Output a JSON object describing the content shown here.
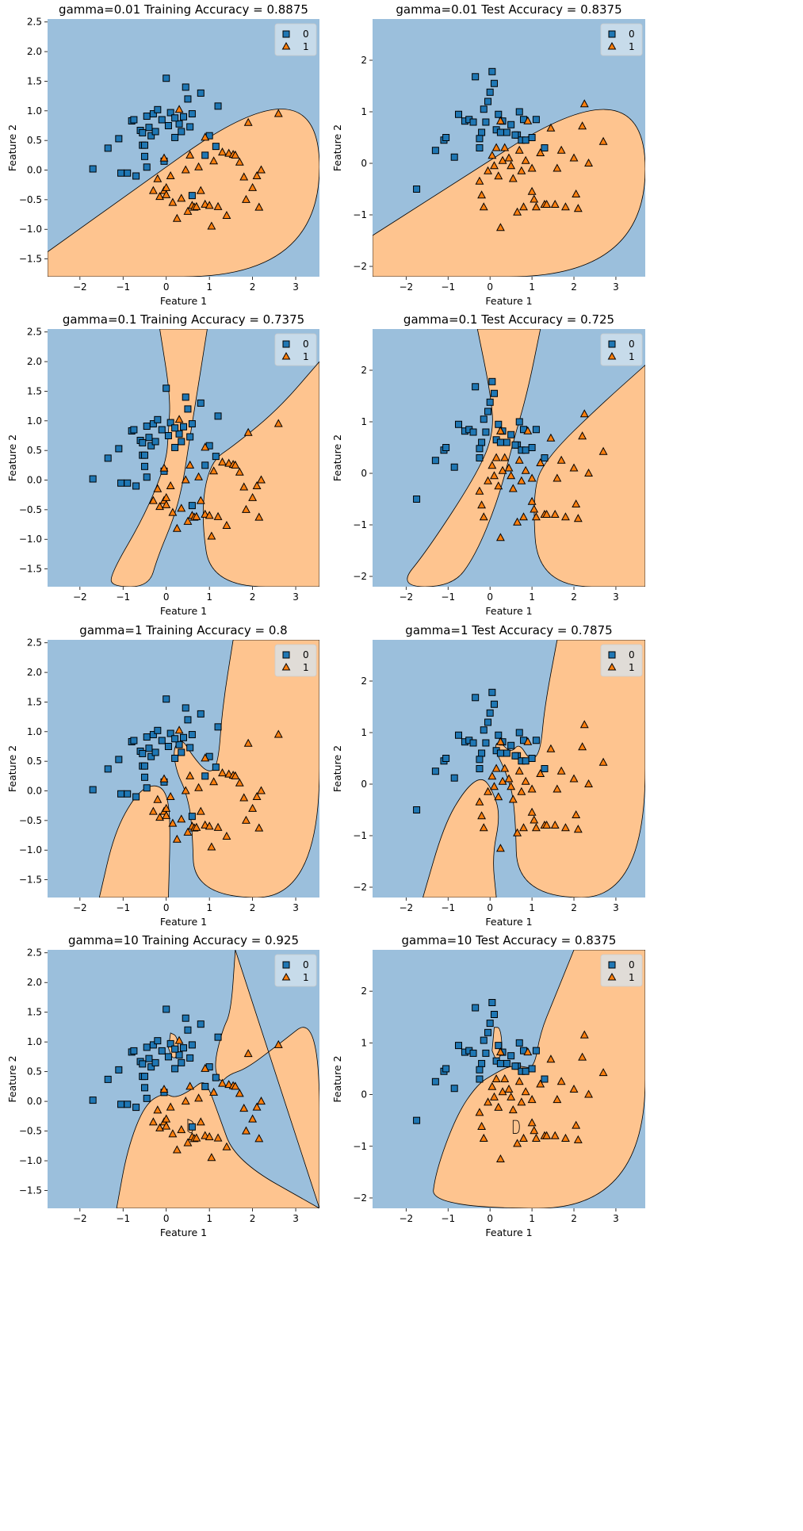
{
  "colors": {
    "class0_region": "#9bbfdc",
    "class1_region": "#fec48f",
    "class0_marker": "#1f77b4",
    "class1_marker": "#ff7f0e",
    "marker_edge": "#000000",
    "boundary": "#000000"
  },
  "legend": {
    "labels": [
      "0",
      "1"
    ],
    "markers": [
      "square",
      "triangle"
    ],
    "placement": "top-right"
  },
  "chart_data": [
    {
      "type": "scatter",
      "title": "gamma=0.01 Training Accuracy = 0.8875",
      "xlabel": "Feature 1",
      "ylabel": "Feature 2",
      "xlim": [
        -2.75,
        3.55
      ],
      "ylim": [
        -1.8,
        2.55
      ],
      "xticks": [
        -2,
        -1,
        0,
        1,
        2,
        3
      ],
      "yticks": [
        -1.5,
        -1.0,
        -0.5,
        0.0,
        0.5,
        1.0,
        1.5,
        2.0,
        2.5
      ],
      "ytick_labels": [
        "−1.5",
        "−1.0",
        "−0.5",
        "0.0",
        "0.5",
        "1.0",
        "1.5",
        "2.0",
        "2.5"
      ],
      "series": [
        {
          "name": "0",
          "x": [
            -1.7,
            -1.35,
            -1.1,
            -1.05,
            -0.9,
            -0.8,
            -0.75,
            -0.7,
            -0.6,
            -0.55,
            -0.5,
            -0.45,
            -0.45,
            -0.4,
            -0.35,
            -0.3,
            -0.25,
            -0.2,
            -0.1,
            -0.05,
            0.0,
            0.05,
            0.1,
            0.2,
            0.3,
            0.35,
            0.4,
            0.45,
            0.5,
            0.55,
            0.6,
            0.8,
            0.9,
            1.0,
            1.15,
            1.2,
            -0.5,
            -0.55,
            0.6,
            0.2
          ],
          "y": [
            0.02,
            0.37,
            0.53,
            -0.05,
            -0.05,
            0.83,
            0.85,
            -0.1,
            0.67,
            0.42,
            0.23,
            0.91,
            0.05,
            0.72,
            0.58,
            0.95,
            0.65,
            1.02,
            0.85,
            0.15,
            1.55,
            0.75,
            0.97,
            0.55,
            0.78,
            0.65,
            0.9,
            1.4,
            1.2,
            0.73,
            -0.43,
            1.3,
            0.25,
            0.58,
            0.4,
            1.08,
            0.42,
            0.63,
            0.95,
            0.88
          ],
          "marker": "square"
        },
        {
          "name": "1",
          "x": [
            -0.3,
            -0.2,
            -0.15,
            -0.05,
            -0.05,
            0.0,
            0.0,
            0.1,
            0.15,
            0.25,
            0.3,
            0.35,
            0.45,
            0.5,
            0.55,
            0.6,
            0.65,
            0.7,
            0.75,
            0.8,
            0.9,
            1.0,
            1.05,
            1.1,
            1.2,
            1.3,
            1.4,
            1.45,
            1.55,
            1.6,
            1.7,
            1.8,
            1.85,
            1.9,
            2.0,
            2.1,
            2.15,
            2.2,
            2.6,
            0.9
          ],
          "y": [
            -0.35,
            -0.15,
            -0.45,
            -0.35,
            0.2,
            -0.3,
            -0.42,
            -0.1,
            -0.55,
            -0.82,
            1.02,
            -0.48,
            0.0,
            -0.7,
            0.25,
            -0.6,
            -0.63,
            -0.62,
            0.05,
            -0.35,
            -0.58,
            -0.6,
            -0.95,
            0.15,
            -0.62,
            0.3,
            -0.77,
            0.28,
            0.26,
            0.25,
            0.13,
            -0.12,
            -0.5,
            0.8,
            -0.3,
            -0.1,
            -0.63,
            0.0,
            0.95,
            0.55
          ],
          "marker": "triangle"
        }
      ]
    },
    {
      "type": "scatter",
      "title": "gamma=0.01 Test Accuracy = 0.8375",
      "xlabel": "Feature 1",
      "ylabel": "Feature 2",
      "xlim": [
        -2.8,
        3.7
      ],
      "ylim": [
        -2.2,
        2.8
      ],
      "xticks": [
        -2,
        -1,
        0,
        1,
        2,
        3
      ],
      "yticks": [
        -2,
        -1,
        0,
        1,
        2
      ],
      "ytick_labels": [
        "−2",
        "−1",
        "0",
        "1",
        "2"
      ],
      "series": [
        {
          "name": "0",
          "x": [
            -1.75,
            -1.3,
            -1.1,
            -1.05,
            -0.85,
            -0.75,
            -0.6,
            -0.5,
            -0.4,
            -0.35,
            -0.25,
            -0.2,
            -0.15,
            -0.1,
            -0.05,
            0.0,
            0.05,
            0.1,
            0.15,
            0.2,
            0.3,
            0.4,
            0.5,
            0.65,
            0.7,
            0.75,
            0.8,
            0.85,
            1.0,
            1.1,
            1.3,
            0.6,
            0.25,
            -0.25
          ],
          "y": [
            -0.5,
            0.25,
            0.45,
            0.5,
            0.12,
            0.95,
            0.82,
            0.85,
            0.8,
            1.68,
            0.3,
            0.6,
            1.05,
            0.8,
            1.2,
            1.38,
            1.78,
            1.55,
            0.65,
            0.95,
            0.82,
            0.6,
            0.75,
            0.55,
            1.0,
            0.45,
            0.85,
            0.45,
            0.5,
            0.85,
            0.3,
            0.55,
            0.6,
            0.48
          ],
          "marker": "square"
        },
        {
          "name": "1",
          "x": [
            -0.25,
            -0.2,
            -0.15,
            -0.05,
            0.05,
            0.1,
            0.15,
            0.2,
            0.25,
            0.3,
            0.35,
            0.45,
            0.5,
            0.55,
            0.65,
            0.7,
            0.75,
            0.8,
            0.85,
            0.9,
            1.0,
            1.05,
            1.1,
            1.2,
            1.3,
            1.35,
            1.45,
            1.55,
            1.6,
            1.7,
            1.8,
            2.0,
            2.05,
            2.1,
            2.2,
            2.25,
            2.35,
            2.7,
            1.0,
            0.25
          ],
          "y": [
            -0.35,
            -0.62,
            -0.85,
            -0.15,
            0.15,
            -0.05,
            0.3,
            -0.25,
            -1.25,
            0.05,
            0.3,
            0.1,
            -0.05,
            -0.3,
            -0.95,
            0.25,
            -0.15,
            -0.85,
            0.05,
            0.82,
            -0.55,
            -0.7,
            -0.85,
            0.2,
            -0.8,
            -0.8,
            0.68,
            -0.8,
            -0.1,
            0.25,
            -0.85,
            0.1,
            -0.6,
            -0.88,
            0.72,
            1.15,
            0.0,
            0.42,
            -0.1,
            0.82
          ],
          "marker": "triangle"
        }
      ]
    },
    {
      "type": "scatter",
      "title": "gamma=0.1 Training Accuracy = 0.7375",
      "xlabel": "Feature 1",
      "ylabel": "Feature 2",
      "xlim": [
        -2.75,
        3.55
      ],
      "ylim": [
        -1.8,
        2.55
      ],
      "xticks": [
        -2,
        -1,
        0,
        1,
        2,
        3
      ],
      "yticks": [
        -1.5,
        -1.0,
        -0.5,
        0.0,
        0.5,
        1.0,
        1.5,
        2.0,
        2.5
      ],
      "ytick_labels": [
        "−1.5",
        "−1.0",
        "−0.5",
        "0.0",
        "0.5",
        "1.0",
        "1.5",
        "2.0",
        "2.5"
      ],
      "series_ref": 0
    },
    {
      "type": "scatter",
      "title": "gamma=0.1 Test Accuracy = 0.725",
      "xlabel": "Feature 1",
      "ylabel": "Feature 2",
      "xlim": [
        -2.8,
        3.7
      ],
      "ylim": [
        -2.2,
        2.8
      ],
      "xticks": [
        -2,
        -1,
        0,
        1,
        2,
        3
      ],
      "yticks": [
        -2,
        -1,
        0,
        1,
        2
      ],
      "ytick_labels": [
        "−2",
        "−1",
        "0",
        "1",
        "2"
      ],
      "series_ref": 1
    },
    {
      "type": "scatter",
      "title": "gamma=1 Training Accuracy = 0.8",
      "xlabel": "Feature 1",
      "ylabel": "Feature 2",
      "xlim": [
        -2.75,
        3.55
      ],
      "ylim": [
        -1.8,
        2.55
      ],
      "xticks": [
        -2,
        -1,
        0,
        1,
        2,
        3
      ],
      "yticks": [
        -1.5,
        -1.0,
        -0.5,
        0.0,
        0.5,
        1.0,
        1.5,
        2.0,
        2.5
      ],
      "ytick_labels": [
        "−1.5",
        "−1.0",
        "−0.5",
        "0.0",
        "0.5",
        "1.0",
        "1.5",
        "2.0",
        "2.5"
      ],
      "series_ref": 0
    },
    {
      "type": "scatter",
      "title": "gamma=1 Test Accuracy = 0.7875",
      "xlabel": "Feature 1",
      "ylabel": "Feature 2",
      "xlim": [
        -2.8,
        3.7
      ],
      "ylim": [
        -2.2,
        2.8
      ],
      "xticks": [
        -2,
        -1,
        0,
        1,
        2,
        3
      ],
      "yticks": [
        -2,
        -1,
        0,
        1,
        2
      ],
      "ytick_labels": [
        "−2",
        "−1",
        "0",
        "1",
        "2"
      ],
      "series_ref": 1
    },
    {
      "type": "scatter",
      "title": "gamma=10 Training Accuracy = 0.925",
      "xlabel": "Feature 1",
      "ylabel": "Feature 2",
      "xlim": [
        -2.75,
        3.55
      ],
      "ylim": [
        -1.8,
        2.55
      ],
      "xticks": [
        -2,
        -1,
        0,
        1,
        2,
        3
      ],
      "yticks": [
        -1.5,
        -1.0,
        -0.5,
        0.0,
        0.5,
        1.0,
        1.5,
        2.0,
        2.5
      ],
      "ytick_labels": [
        "−1.5",
        "−1.0",
        "−0.5",
        "0.0",
        "0.5",
        "1.0",
        "1.5",
        "2.0",
        "2.5"
      ],
      "series_ref": 0
    },
    {
      "type": "scatter",
      "title": "gamma=10 Test Accuracy = 0.8375",
      "xlabel": "Feature 1",
      "ylabel": "Feature 2",
      "xlim": [
        -2.8,
        3.7
      ],
      "ylim": [
        -2.2,
        2.8
      ],
      "xticks": [
        -2,
        -1,
        0,
        1,
        2,
        3
      ],
      "yticks": [
        -2,
        -1,
        0,
        1,
        2
      ],
      "ytick_labels": [
        "−2",
        "−1",
        "0",
        "1",
        "2"
      ],
      "series_ref": 1
    }
  ]
}
